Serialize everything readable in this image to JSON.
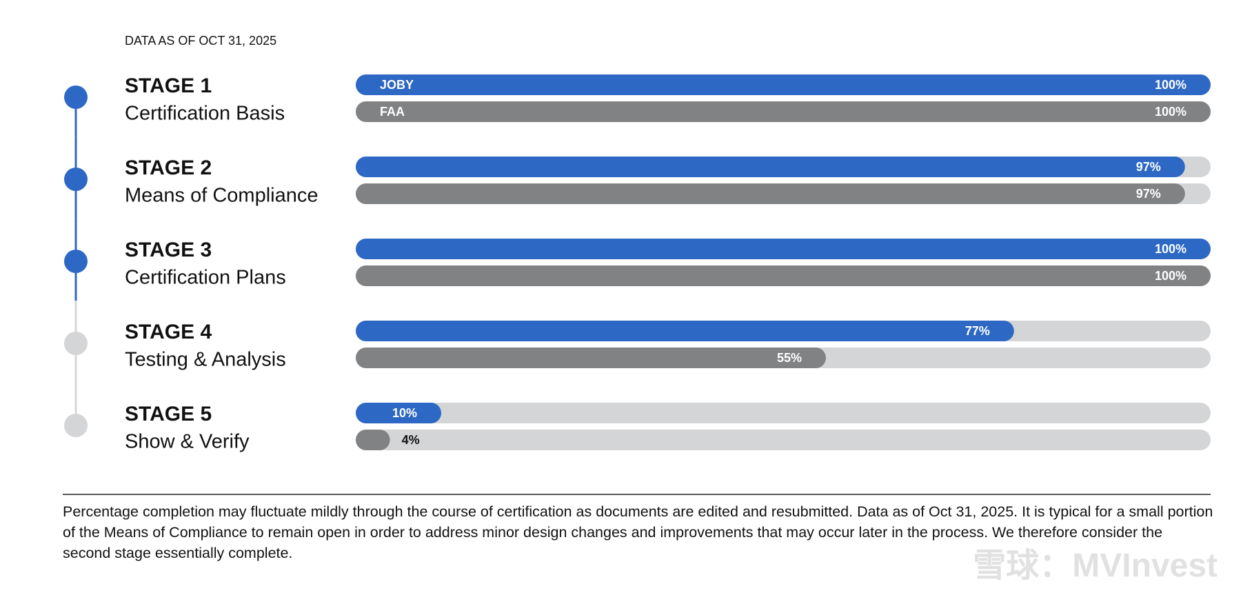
{
  "chart_data": {
    "type": "bar",
    "note": "DATA AS OF OCT 31, 2025",
    "stages": [
      "STAGE 1",
      "STAGE 2",
      "STAGE 3",
      "STAGE 4",
      "STAGE 5"
    ],
    "categories": [
      "Certification Basis",
      "Means of Compliance",
      "Certification Plans",
      "Testing & Analysis",
      "Show & Verify"
    ],
    "timeline_colors": [
      "#2d68c4",
      "#2d68c4",
      "#2d68c4",
      "#d4d5d7",
      "#d4d5d7"
    ],
    "track_color": "#d4d5d7",
    "xlim": [
      0,
      100
    ],
    "series": [
      {
        "name": "JOBY",
        "color": "#2d68c4",
        "values": [
          100,
          97,
          100,
          77,
          10
        ],
        "value_labels": [
          "100%",
          "97%",
          "100%",
          "77%",
          "10%"
        ]
      },
      {
        "name": "FAA",
        "color": "#818284",
        "values": [
          100,
          97,
          100,
          55,
          4
        ],
        "value_labels": [
          "100%",
          "97%",
          "100%",
          "55%",
          "4%"
        ]
      }
    ],
    "footnote": "Percentage completion may fluctuate mildly through the course of certification as documents are edited and resubmitted. Data as of Oct 31, 2025. It is typical for a small portion of the Means of Compliance to remain open in order to address minor design changes and improvements that may occur later in the process. We therefore consider the second stage essentially complete.",
    "watermark": "雪球：MVInvest"
  }
}
